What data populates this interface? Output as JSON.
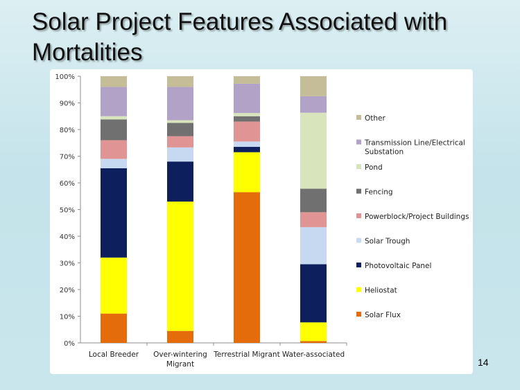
{
  "slide": {
    "title": "Solar Project Features Associated with Mortalities",
    "page_number": "14"
  },
  "chart_data": {
    "type": "bar",
    "stacked": true,
    "percent": true,
    "categories": [
      [
        "Local Breeder"
      ],
      [
        "Over-wintering",
        "Migrant"
      ],
      [
        "Terrestrial Migrant"
      ],
      [
        "Water-associated"
      ]
    ],
    "ylim": [
      0,
      100
    ],
    "yticks": [
      "0%",
      "10%",
      "20%",
      "30%",
      "40%",
      "50%",
      "60%",
      "70%",
      "80%",
      "90%",
      "100%"
    ],
    "grid": false,
    "legend_position": "right",
    "series": [
      {
        "name": "Solar Flux",
        "color": "#e46c0a",
        "values": [
          11.0,
          4.5,
          56.5,
          0.7
        ]
      },
      {
        "name": "Heliostat",
        "color": "#ffff00",
        "values": [
          21.0,
          48.5,
          15.0,
          7.0
        ]
      },
      {
        "name": "Photovoltaic Panel",
        "color": "#0d1f5c",
        "values": [
          33.5,
          15.0,
          2.0,
          21.8
        ]
      },
      {
        "name": "Solar Trough",
        "color": "#c6d9f1",
        "values": [
          3.5,
          5.3,
          2.0,
          13.9
        ]
      },
      {
        "name": "Powerblock/Project Buildings",
        "color": "#e09494",
        "values": [
          7.0,
          4.2,
          7.5,
          5.6
        ]
      },
      {
        "name": "Fencing",
        "color": "#707070",
        "values": [
          7.8,
          5.0,
          2.0,
          8.8
        ]
      },
      {
        "name": "Pond",
        "color": "#d8e4bc",
        "values": [
          1.2,
          1.0,
          1.2,
          28.5
        ]
      },
      {
        "name": "Transmission Line/Electrical Substation",
        "color": "#b3a2c7",
        "values": [
          11.0,
          12.5,
          11.0,
          6.2
        ]
      },
      {
        "name": "Other",
        "color": "#c4bd97",
        "values": [
          4.0,
          4.0,
          2.8,
          7.5
        ]
      }
    ]
  }
}
